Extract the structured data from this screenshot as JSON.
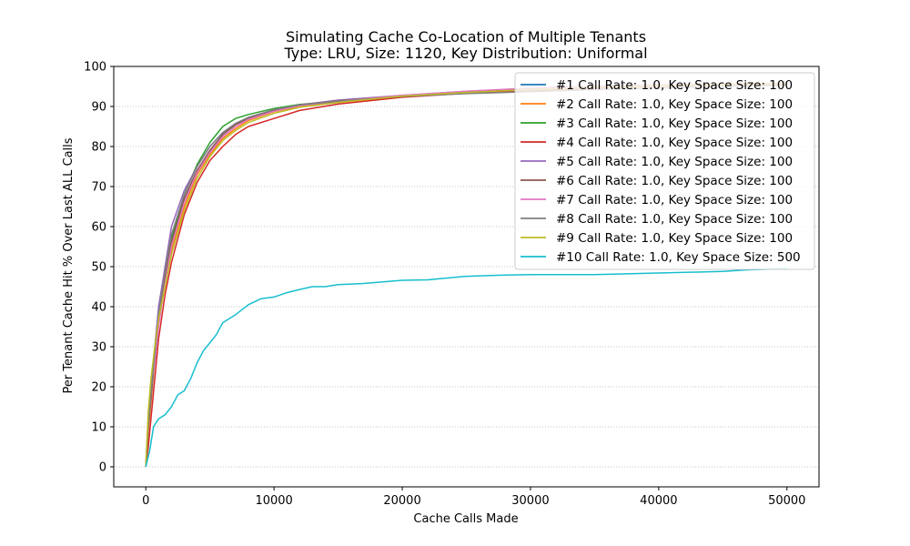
{
  "chart_data": {
    "type": "line",
    "title": "Simulating Cache Co-Location of Multiple Tenants",
    "subtitle": "Type: LRU, Size: 1120, Key Distribution: Uniformal",
    "xlabel": "Cache Calls Made",
    "ylabel": "Per Tenant Cache Hit % Over Last ALL Calls",
    "xlim": [
      -2500,
      52500
    ],
    "ylim": [
      -5,
      100
    ],
    "xticks": [
      0,
      10000,
      20000,
      30000,
      40000,
      50000
    ],
    "yticks": [
      0,
      10,
      20,
      30,
      40,
      50,
      60,
      70,
      80,
      90,
      100
    ],
    "grid": {
      "y": true,
      "x": false,
      "style": "dotted"
    },
    "legend_position": "top-right",
    "series": [
      {
        "name": "#1 Call Rate: 1.0, Key Space Size: 100",
        "color": "#1f77b4",
        "x": [
          0,
          200,
          400,
          700,
          1000,
          1500,
          2000,
          3000,
          4000,
          5000,
          6000,
          7000,
          8000,
          10000,
          12000,
          15000,
          20000,
          25000,
          30000,
          35000,
          40000,
          45000,
          50000
        ],
        "y": [
          0,
          10,
          17,
          28,
          38,
          48,
          56,
          67,
          74,
          79,
          83,
          85.5,
          87,
          89,
          90.3,
          91.3,
          92.7,
          93.6,
          94.3,
          94.9,
          95.3,
          95.6,
          95.8
        ]
      },
      {
        "name": "#2 Call Rate: 1.0, Key Space Size: 100",
        "color": "#ff7f0e",
        "x": [
          0,
          200,
          400,
          700,
          1000,
          1500,
          2000,
          3000,
          4000,
          5000,
          6000,
          7000,
          8000,
          10000,
          12000,
          15000,
          20000,
          25000,
          30000,
          35000,
          40000,
          45000,
          50000
        ],
        "y": [
          0,
          9,
          16,
          27,
          36,
          46,
          54,
          65,
          73,
          78,
          82,
          84.5,
          86.5,
          88.7,
          90,
          91,
          92.5,
          93.4,
          94.1,
          94.7,
          95.1,
          95.5,
          95.7
        ]
      },
      {
        "name": "#3 Call Rate: 1.0, Key Space Size: 100",
        "color": "#2ca02c",
        "x": [
          0,
          200,
          400,
          700,
          1000,
          1500,
          2000,
          3000,
          4000,
          5000,
          6000,
          7000,
          8000,
          10000,
          12000,
          15000,
          20000,
          25000,
          30000,
          35000,
          40000,
          45000,
          50000
        ],
        "y": [
          0,
          11,
          18,
          29,
          39,
          49,
          57,
          68,
          75.5,
          81,
          85,
          87,
          88,
          89.5,
          90.5,
          91.3,
          92.6,
          93.5,
          94.2,
          94.8,
          95.2,
          95.5,
          95.7
        ]
      },
      {
        "name": "#4 Call Rate: 1.0, Key Space Size: 100",
        "color": "#d62728",
        "x": [
          0,
          200,
          400,
          700,
          1000,
          1500,
          2000,
          3000,
          4000,
          5000,
          6000,
          7000,
          8000,
          10000,
          12000,
          15000,
          20000,
          25000,
          30000,
          35000,
          40000,
          45000,
          50000
        ],
        "y": [
          0,
          5,
          12,
          22,
          32,
          43,
          51,
          63,
          71,
          76.5,
          80,
          83,
          85,
          87,
          89,
          90.6,
          92.3,
          93.3,
          94,
          94.6,
          95.1,
          95.4,
          95.6
        ]
      },
      {
        "name": "#5 Call Rate: 1.0, Key Space Size: 100",
        "color": "#9467bd",
        "x": [
          0,
          200,
          400,
          700,
          1000,
          1500,
          2000,
          3000,
          4000,
          5000,
          6000,
          7000,
          8000,
          10000,
          12000,
          15000,
          20000,
          25000,
          30000,
          35000,
          40000,
          45000,
          50000
        ],
        "y": [
          0,
          12,
          19,
          30,
          40,
          50,
          60,
          69,
          75,
          80,
          83.5,
          85.5,
          87,
          89,
          90.4,
          91.6,
          92.8,
          93.8,
          94.5,
          95,
          95.3,
          95.6,
          95.8
        ]
      },
      {
        "name": "#6 Call Rate: 1.0, Key Space Size: 100",
        "color": "#8c564b",
        "x": [
          0,
          200,
          400,
          700,
          1000,
          1500,
          2000,
          3000,
          4000,
          5000,
          6000,
          7000,
          8000,
          10000,
          12000,
          15000,
          20000,
          25000,
          30000,
          35000,
          40000,
          45000,
          50000
        ],
        "y": [
          0,
          10,
          17,
          27,
          37,
          47,
          56,
          67,
          74,
          79,
          83,
          85.5,
          87,
          89,
          90.4,
          91.4,
          92.7,
          93.6,
          94.3,
          94.8,
          95.2,
          95.5,
          95.7
        ]
      },
      {
        "name": "#7 Call Rate: 1.0, Key Space Size: 100",
        "color": "#e377c2",
        "x": [
          0,
          200,
          400,
          700,
          1000,
          1500,
          2000,
          3000,
          4000,
          5000,
          6000,
          7000,
          8000,
          10000,
          12000,
          15000,
          20000,
          25000,
          30000,
          35000,
          40000,
          45000,
          50000
        ],
        "y": [
          0,
          13,
          20,
          26,
          35,
          46,
          55,
          66,
          73.5,
          78.5,
          82.5,
          85,
          86.8,
          88.8,
          90.2,
          91.3,
          92.8,
          93.8,
          94.6,
          95.1,
          95.4,
          95.6,
          95.8
        ]
      },
      {
        "name": "#8 Call Rate: 1.0, Key Space Size: 100",
        "color": "#7f7f7f",
        "x": [
          0,
          200,
          400,
          700,
          1000,
          1500,
          2000,
          3000,
          4000,
          5000,
          6000,
          7000,
          8000,
          10000,
          12000,
          15000,
          20000,
          25000,
          30000,
          35000,
          40000,
          45000,
          50000
        ],
        "y": [
          0,
          11,
          18,
          28,
          38,
          49,
          58,
          68,
          75,
          80,
          83.5,
          85.8,
          87.3,
          89.2,
          90.4,
          91.3,
          92.5,
          93.2,
          93.7,
          94.2,
          94.6,
          95,
          95.3
        ]
      },
      {
        "name": "#9 Call Rate: 1.0, Key Space Size: 100",
        "color": "#bcbd22",
        "x": [
          0,
          200,
          400,
          700,
          1000,
          1500,
          2000,
          3000,
          4000,
          5000,
          6000,
          7000,
          8000,
          10000,
          12000,
          15000,
          20000,
          25000,
          30000,
          35000,
          40000,
          45000,
          50000
        ],
        "y": [
          0,
          14,
          22,
          30,
          37,
          45,
          53,
          64,
          72,
          77.5,
          81.5,
          84,
          86,
          88.3,
          89.8,
          91,
          92.6,
          93.5,
          94.2,
          94.8,
          95.2,
          95.5,
          95.7
        ]
      },
      {
        "name": "#10 Call Rate: 1.0, Key Space Size: 500",
        "color": "#17becf",
        "x": [
          0,
          300,
          600,
          1000,
          1500,
          2000,
          2500,
          3000,
          3500,
          4000,
          4500,
          5000,
          5500,
          6000,
          7000,
          8000,
          9000,
          10000,
          11000,
          12000,
          13000,
          14000,
          15000,
          17000,
          20000,
          22000,
          25000,
          28000,
          30000,
          35000,
          40000,
          45000,
          47000,
          50000
        ],
        "y": [
          0,
          4,
          10,
          12,
          13,
          15,
          18,
          19,
          22,
          26,
          29,
          31,
          33,
          36,
          38,
          40.5,
          42,
          42.4,
          43.5,
          44.3,
          45,
          45,
          45.5,
          45.8,
          46.6,
          46.7,
          47.6,
          47.9,
          48,
          48,
          48.4,
          48.8,
          49.2,
          49.5
        ]
      }
    ]
  }
}
